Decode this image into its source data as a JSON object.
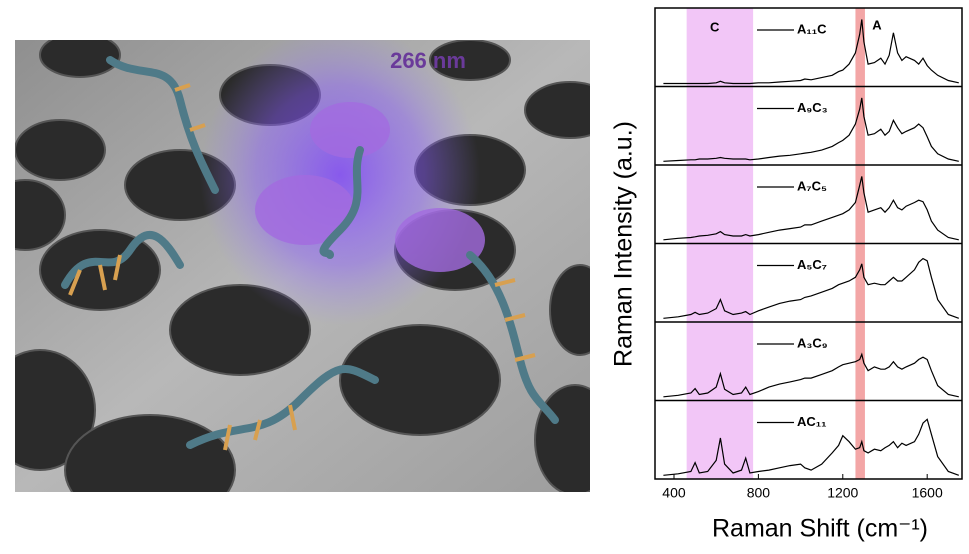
{
  "illustration": {
    "label": "266 nm"
  },
  "chart_data": {
    "type": "line",
    "xlabel": "Raman Shift (cm⁻¹)",
    "ylabel": "Raman Intensity (a.u.)",
    "xlim": [
      310,
      1765
    ],
    "xticks": [
      400,
      800,
      1200,
      1600
    ],
    "ylim": [
      0,
      1
    ],
    "regions": [
      {
        "label": "C",
        "xlim": [
          460,
          775
        ],
        "color": "#f2c6f7"
      },
      {
        "label": "A",
        "xlim": [
          1260,
          1305
        ],
        "color": "#f3a6a6"
      }
    ],
    "x": [
      350,
      420,
      480,
      500,
      520,
      560,
      600,
      620,
      640,
      680,
      720,
      740,
      760,
      800,
      850,
      900,
      950,
      1000,
      1020,
      1050,
      1100,
      1150,
      1180,
      1200,
      1230,
      1260,
      1280,
      1290,
      1300,
      1320,
      1350,
      1380,
      1400,
      1420,
      1440,
      1460,
      1480,
      1500,
      1540,
      1560,
      1580,
      1600,
      1620,
      1650,
      1700,
      1750
    ],
    "series": [
      {
        "name": "A₁₁C",
        "color": "#000000",
        "values": [
          0.04,
          0.04,
          0.04,
          0.04,
          0.04,
          0.04,
          0.05,
          0.07,
          0.05,
          0.04,
          0.04,
          0.04,
          0.04,
          0.05,
          0.05,
          0.06,
          0.07,
          0.08,
          0.1,
          0.09,
          0.12,
          0.15,
          0.2,
          0.22,
          0.3,
          0.45,
          0.7,
          0.9,
          0.6,
          0.3,
          0.32,
          0.38,
          0.3,
          0.42,
          0.72,
          0.45,
          0.35,
          0.4,
          0.35,
          0.3,
          0.38,
          0.28,
          0.22,
          0.15,
          0.08,
          0.05
        ]
      },
      {
        "name": "A₉C₃",
        "color": "#000000",
        "values": [
          0.05,
          0.06,
          0.07,
          0.07,
          0.08,
          0.08,
          0.09,
          0.1,
          0.09,
          0.08,
          0.08,
          0.08,
          0.07,
          0.08,
          0.1,
          0.12,
          0.13,
          0.15,
          0.16,
          0.17,
          0.2,
          0.25,
          0.3,
          0.33,
          0.4,
          0.55,
          0.75,
          0.9,
          0.65,
          0.4,
          0.42,
          0.48,
          0.4,
          0.45,
          0.6,
          0.5,
          0.42,
          0.45,
          0.5,
          0.55,
          0.5,
          0.38,
          0.25,
          0.15,
          0.08,
          0.05
        ]
      },
      {
        "name": "A₇C₅",
        "color": "#000000",
        "values": [
          0.05,
          0.07,
          0.08,
          0.09,
          0.1,
          0.11,
          0.13,
          0.16,
          0.12,
          0.1,
          0.1,
          0.12,
          0.1,
          0.12,
          0.15,
          0.18,
          0.2,
          0.22,
          0.25,
          0.25,
          0.3,
          0.35,
          0.38,
          0.4,
          0.45,
          0.55,
          0.78,
          0.9,
          0.68,
          0.42,
          0.45,
          0.48,
          0.42,
          0.48,
          0.58,
          0.48,
          0.45,
          0.5,
          0.55,
          0.58,
          0.56,
          0.45,
          0.3,
          0.18,
          0.08,
          0.05
        ]
      },
      {
        "name": "A₅C₇",
        "color": "#000000",
        "values": [
          0.05,
          0.07,
          0.1,
          0.13,
          0.1,
          0.12,
          0.18,
          0.3,
          0.15,
          0.1,
          0.12,
          0.14,
          0.1,
          0.15,
          0.2,
          0.25,
          0.28,
          0.3,
          0.33,
          0.35,
          0.4,
          0.45,
          0.5,
          0.52,
          0.55,
          0.6,
          0.7,
          0.78,
          0.6,
          0.5,
          0.52,
          0.5,
          0.5,
          0.55,
          0.6,
          0.55,
          0.55,
          0.6,
          0.7,
          0.8,
          0.85,
          0.82,
          0.6,
          0.3,
          0.1,
          0.05
        ]
      },
      {
        "name": "A₃C₉",
        "color": "#000000",
        "values": [
          0.05,
          0.07,
          0.1,
          0.16,
          0.08,
          0.1,
          0.18,
          0.36,
          0.15,
          0.08,
          0.1,
          0.18,
          0.08,
          0.12,
          0.18,
          0.22,
          0.25,
          0.28,
          0.3,
          0.3,
          0.35,
          0.4,
          0.45,
          0.48,
          0.5,
          0.52,
          0.55,
          0.62,
          0.5,
          0.4,
          0.45,
          0.42,
          0.42,
          0.45,
          0.52,
          0.45,
          0.42,
          0.45,
          0.5,
          0.55,
          0.58,
          0.55,
          0.4,
          0.2,
          0.08,
          0.05
        ]
      },
      {
        "name": "AC₁₁",
        "color": "#000000",
        "values": [
          0.05,
          0.07,
          0.1,
          0.22,
          0.08,
          0.1,
          0.25,
          0.55,
          0.2,
          0.08,
          0.12,
          0.28,
          0.08,
          0.1,
          0.12,
          0.15,
          0.18,
          0.2,
          0.15,
          0.12,
          0.2,
          0.35,
          0.45,
          0.58,
          0.5,
          0.4,
          0.42,
          0.5,
          0.38,
          0.35,
          0.4,
          0.38,
          0.42,
          0.45,
          0.5,
          0.42,
          0.48,
          0.45,
          0.5,
          0.6,
          0.75,
          0.8,
          0.6,
          0.3,
          0.1,
          0.05
        ]
      }
    ]
  }
}
